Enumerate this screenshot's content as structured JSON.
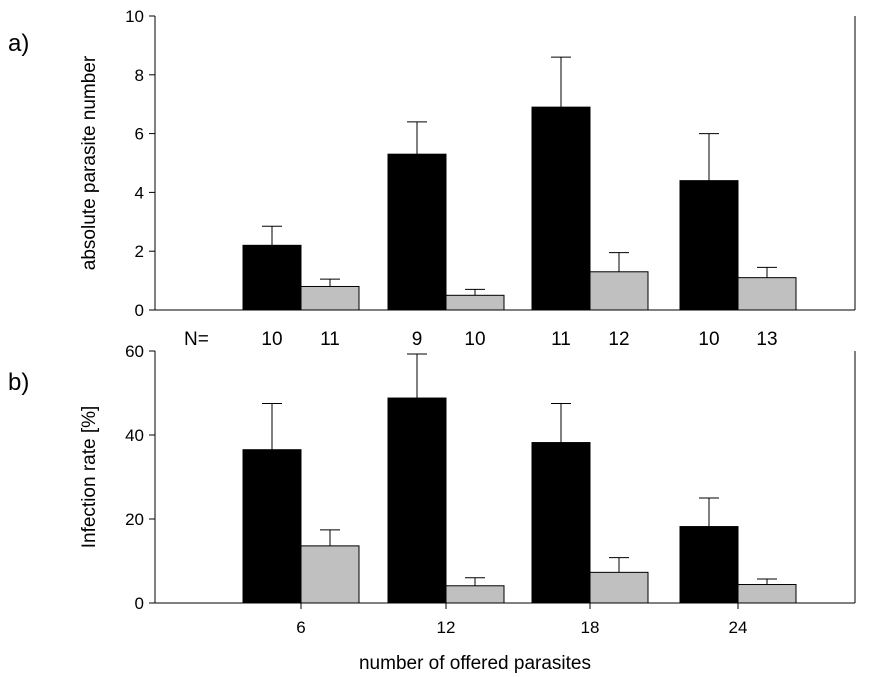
{
  "panel_labels": [
    "a)",
    "b)"
  ],
  "n_prefix": "N=",
  "n_labels": [
    "10",
    "11",
    "9",
    "10",
    "11",
    "12",
    "10",
    "13"
  ],
  "colors": {
    "series_1": "#000000",
    "series_2": "#c0c0c0",
    "axis": "#000000"
  },
  "chart_data": [
    {
      "type": "bar",
      "panel": "a)",
      "categories": [
        "6",
        "12",
        "18",
        "24"
      ],
      "ylabel": "absolute parasite number",
      "ylim": [
        0,
        10
      ],
      "yticks": [
        "0",
        "2",
        "4",
        "6",
        "8",
        "10"
      ],
      "series": [
        {
          "values": [
            2.2,
            5.3,
            6.9,
            4.4
          ],
          "errors": [
            0.65,
            1.1,
            1.7,
            1.6
          ],
          "color": "#000000"
        },
        {
          "values": [
            0.8,
            0.5,
            1.3,
            1.1
          ],
          "errors": [
            0.25,
            0.2,
            0.65,
            0.35
          ],
          "color": "#c0c0c0"
        }
      ]
    },
    {
      "type": "bar",
      "panel": "b)",
      "categories": [
        "6",
        "12",
        "18",
        "24"
      ],
      "xlabel": "number of offered parasites",
      "ylabel": "Infection rate [%]",
      "ylim": [
        0,
        60
      ],
      "yticks": [
        "0",
        "20",
        "40",
        "60"
      ],
      "series": [
        {
          "values": [
            36.5,
            48.8,
            38.2,
            18.2
          ],
          "errors": [
            11,
            10.5,
            9.3,
            6.8
          ],
          "color": "#000000"
        },
        {
          "values": [
            13.6,
            4.1,
            7.3,
            4.4
          ],
          "errors": [
            3.8,
            1.9,
            3.5,
            1.3
          ],
          "color": "#c0c0c0"
        }
      ]
    }
  ]
}
